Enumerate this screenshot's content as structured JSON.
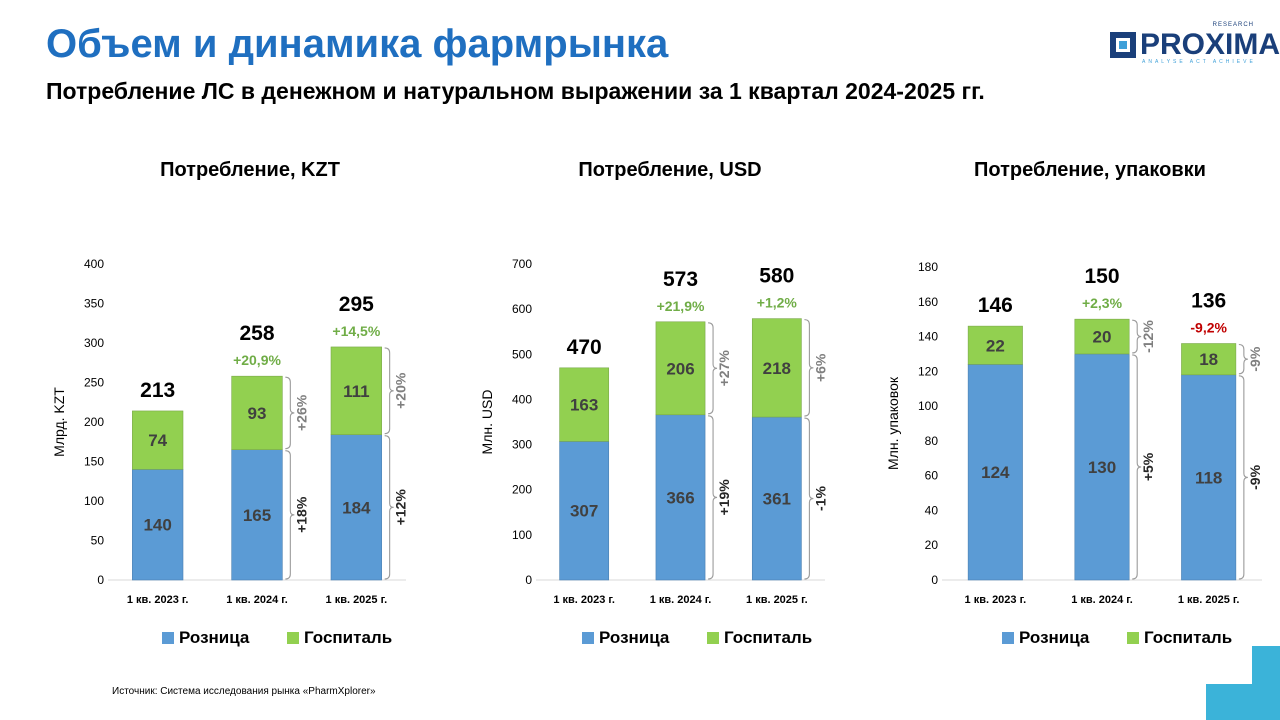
{
  "header": {
    "title": "Объем и динамика фармрынка",
    "subtitle": "Потребление ЛС в денежном и натуральном выражении за 1 квартал 2024-2025 гг."
  },
  "logo": {
    "text": "PROXIMA",
    "top": "RESEARCH",
    "tag": "ANALYSE  ACT  ACHIEVE"
  },
  "source": "Источник: Система исследования рынка «PharmXplorer»",
  "colors": {
    "title": "#1f6fc0",
    "retail": "#5b9bd5",
    "hospital": "#92d050",
    "positive": "#70ad47",
    "negative": "#c00000",
    "bracket_text": "#7f7f7f"
  },
  "chart_data": [
    {
      "type": "bar",
      "stacked": true,
      "title": "Потребление, KZT",
      "ylabel": "Млрд. KZT",
      "ylim": [
        0,
        400
      ],
      "yticks": [
        0,
        50,
        100,
        150,
        200,
        250,
        300,
        350,
        400
      ],
      "categories": [
        "1 кв. 2023 г.",
        "1 кв. 2024 г.",
        "1 кв. 2025 г."
      ],
      "series": [
        {
          "name": "Розница",
          "values": [
            140,
            165,
            184
          ]
        },
        {
          "name": "Госпиталь",
          "values": [
            74,
            93,
            111
          ]
        }
      ],
      "totals": [
        "213",
        "258",
        "295"
      ],
      "total_growth": [
        "",
        "+20,9%",
        "+14,5%"
      ],
      "growth_colors": [
        "",
        "#70ad47",
        "#70ad47"
      ],
      "bracket_labels": {
        "retail": [
          "+18%",
          "+12%"
        ],
        "hospital": [
          "+26%",
          "+20%"
        ]
      },
      "legend": [
        "Розница",
        "Госпиталь"
      ],
      "legend_position": "bottom"
    },
    {
      "type": "bar",
      "stacked": true,
      "title": "Потребление, USD",
      "ylabel": "Млн. USD",
      "ylim": [
        0,
        700
      ],
      "yticks": [
        0,
        100,
        200,
        300,
        400,
        500,
        600,
        700
      ],
      "categories": [
        "1 кв. 2023 г.",
        "1 кв. 2024 г.",
        "1 кв. 2025 г."
      ],
      "series": [
        {
          "name": "Розница",
          "values": [
            307,
            366,
            361
          ]
        },
        {
          "name": "Госпиталь",
          "values": [
            163,
            206,
            218
          ]
        }
      ],
      "totals": [
        "470",
        "573",
        "580"
      ],
      "total_growth": [
        "",
        "+21,9%",
        "+1,2%"
      ],
      "growth_colors": [
        "",
        "#70ad47",
        "#70ad47"
      ],
      "bracket_labels": {
        "retail": [
          "+19%",
          "-1%"
        ],
        "hospital": [
          "+27%",
          "+6%"
        ]
      },
      "legend": [
        "Розница",
        "Госпиталь"
      ],
      "legend_position": "bottom"
    },
    {
      "type": "bar",
      "stacked": true,
      "title": "Потребление, упаковки",
      "ylabel": "Млн. упаковок",
      "ylim": [
        0,
        180
      ],
      "yticks": [
        0,
        20,
        40,
        60,
        80,
        100,
        120,
        140,
        160,
        180
      ],
      "categories": [
        "1 кв. 2023 г.",
        "1 кв. 2024 г.",
        "1 кв. 2025 г."
      ],
      "series": [
        {
          "name": "Розница",
          "values": [
            124,
            130,
            118
          ]
        },
        {
          "name": "Госпиталь",
          "values": [
            22,
            20,
            18
          ]
        }
      ],
      "totals": [
        "146",
        "150",
        "136"
      ],
      "total_growth": [
        "",
        "+2,3%",
        "-9,2%"
      ],
      "growth_colors": [
        "",
        "#70ad47",
        "#c00000"
      ],
      "bracket_labels": {
        "retail": [
          "+5%",
          "-9%"
        ],
        "hospital": [
          "-12%",
          "-9%"
        ]
      },
      "legend": [
        "Розница",
        "Госпиталь"
      ],
      "legend_position": "bottom"
    }
  ]
}
